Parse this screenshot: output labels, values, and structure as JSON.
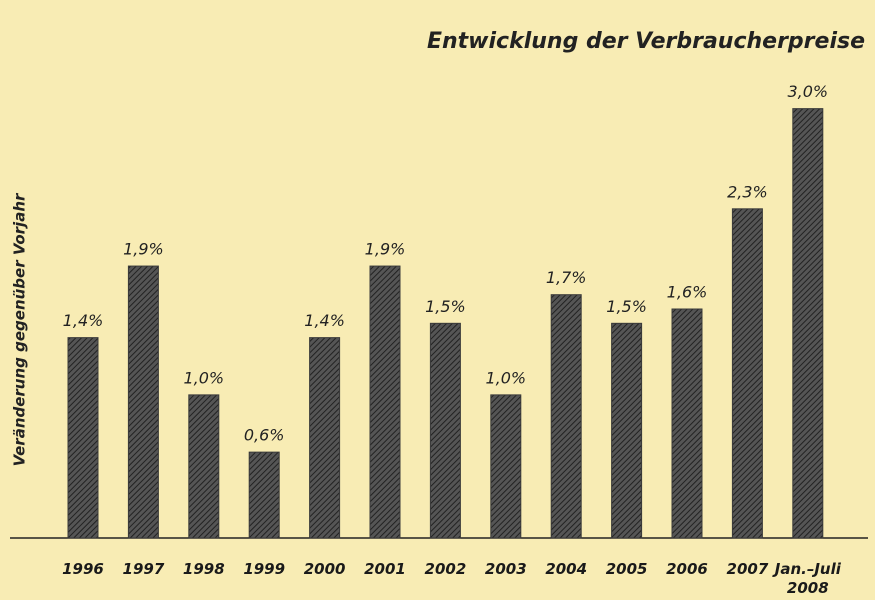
{
  "chart_data": {
    "type": "bar",
    "title": "Entwicklung der Verbraucherpreise",
    "y_label": "Veränderung gegenüber Vorjahr",
    "categories": [
      "1996",
      "1997",
      "1998",
      "1999",
      "2000",
      "2001",
      "2002",
      "2003",
      "2004",
      "2005",
      "2006",
      "2007",
      "Jan.–Juli\n2008"
    ],
    "values": [
      1.4,
      1.9,
      1.0,
      0.6,
      1.4,
      1.9,
      1.5,
      1.0,
      1.7,
      1.5,
      1.6,
      2.3,
      3.0
    ],
    "value_labels": [
      "1,4%",
      "1,9%",
      "1,0%",
      "0,6%",
      "1,4%",
      "1,9%",
      "1,5%",
      "1,0%",
      "1,7%",
      "1,5%",
      "1,6%",
      "2,3%",
      "3,0%"
    ],
    "color": "#3a3a3a",
    "ylim": [
      0,
      3.2
    ]
  }
}
